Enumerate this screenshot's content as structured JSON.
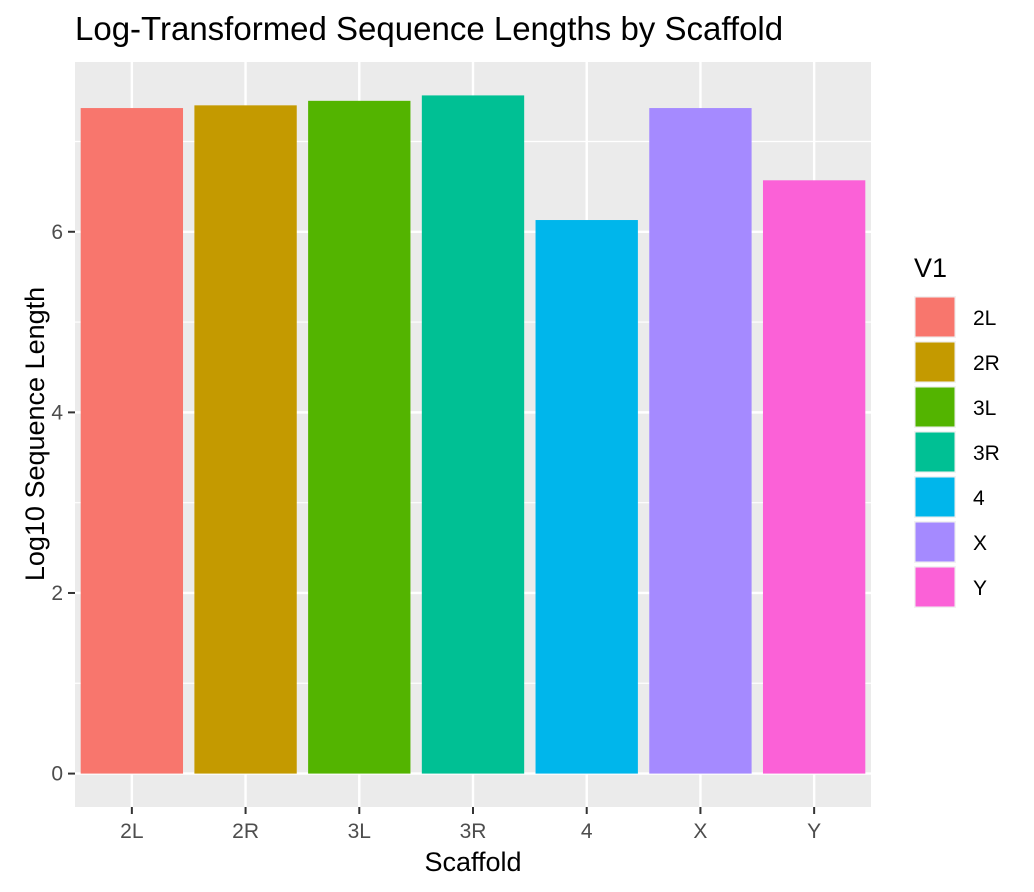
{
  "chart_data": {
    "type": "bar",
    "title": "Log-Transformed Sequence Lengths by Scaffold",
    "xlabel": "Scaffold",
    "ylabel": "Log10 Sequence Length",
    "categories": [
      "2L",
      "2R",
      "3L",
      "3R",
      "4",
      "X",
      "Y"
    ],
    "values": [
      7.37,
      7.4,
      7.45,
      7.51,
      6.13,
      7.37,
      6.57
    ],
    "ylim": [
      -0.37,
      7.88
    ],
    "yticks": [
      0,
      2,
      4,
      6
    ],
    "ytick_labels": [
      "0",
      "2",
      "4",
      "6"
    ],
    "grid": true,
    "legend": {
      "title": "V1",
      "position": "right",
      "entries": [
        "2L",
        "2R",
        "3L",
        "3R",
        "4",
        "X",
        "Y"
      ]
    },
    "colors": [
      "#F8766D",
      "#C49A00",
      "#53B400",
      "#00C094",
      "#00B6EB",
      "#A58AFF",
      "#FB61D7"
    ],
    "panel_background": "#EBEBEB",
    "grid_color": "#FFFFFF"
  }
}
